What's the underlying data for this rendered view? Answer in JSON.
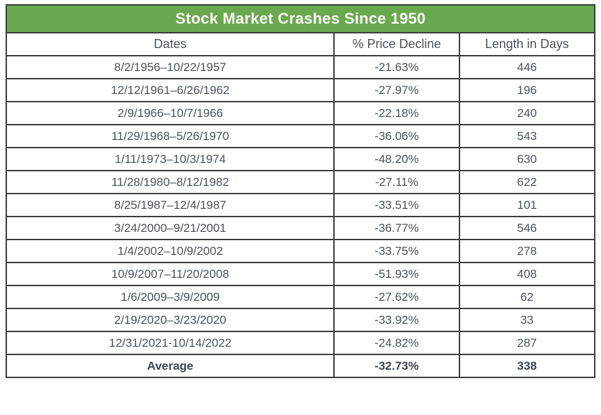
{
  "table": {
    "title": "Stock Market Crashes Since 1950",
    "headers": {
      "dates": "Dates",
      "decline": "% Price Decline",
      "days": "Length in Days"
    },
    "rows": [
      {
        "dates": "8/2/1956–10/22/1957",
        "decline": "-21.63%",
        "days": "446"
      },
      {
        "dates": "12/12/1961–6/26/1962",
        "decline": "-27.97%",
        "days": "196"
      },
      {
        "dates": "2/9/1966–10/7/1966",
        "decline": "-22.18%",
        "days": "240"
      },
      {
        "dates": "11/29/1968–5/26/1970",
        "decline": "-36.06%",
        "days": "543"
      },
      {
        "dates": "1/11/1973–10/3/1974",
        "decline": "-48.20%",
        "days": "630"
      },
      {
        "dates": "11/28/1980–8/12/1982",
        "decline": "-27.11%",
        "days": "622"
      },
      {
        "dates": "8/25/1987–12/4/1987",
        "decline": "-33.51%",
        "days": "101"
      },
      {
        "dates": "3/24/2000–9/21/2001",
        "decline": "-36.77%",
        "days": "546"
      },
      {
        "dates": "1/4/2002–10/9/2002",
        "decline": "-33.75%",
        "days": "278"
      },
      {
        "dates": "10/9/2007–11/20/2008",
        "decline": "-51.93%",
        "days": "408"
      },
      {
        "dates": "1/6/2009–3/9/2009",
        "decline": "-27.62%",
        "days": "62"
      },
      {
        "dates": "2/19/2020–3/23/2020",
        "decline": "-33.92%",
        "days": "33"
      },
      {
        "dates": "12/31/2021-10/14/2022",
        "decline": "-24.82%",
        "days": "287"
      }
    ],
    "average": {
      "label": "Average",
      "decline": "-32.73%",
      "days": "338"
    },
    "colors": {
      "title_background": "#6aa84f",
      "title_text": "#fbfbf9",
      "border": "#3d3d3d",
      "body_text": "#4a525c"
    }
  },
  "chart_data": {
    "type": "table",
    "title": "Stock Market Crashes Since 1950",
    "columns": [
      "Dates",
      "% Price Decline",
      "Length in Days"
    ],
    "rows": [
      {
        "dates": "8/2/1956–10/22/1957",
        "price_decline_pct": -21.63,
        "length_days": 446
      },
      {
        "dates": "12/12/1961–6/26/1962",
        "price_decline_pct": -27.97,
        "length_days": 196
      },
      {
        "dates": "2/9/1966–10/7/1966",
        "price_decline_pct": -22.18,
        "length_days": 240
      },
      {
        "dates": "11/29/1968–5/26/1970",
        "price_decline_pct": -36.06,
        "length_days": 543
      },
      {
        "dates": "1/11/1973–10/3/1974",
        "price_decline_pct": -48.2,
        "length_days": 630
      },
      {
        "dates": "11/28/1980–8/12/1982",
        "price_decline_pct": -27.11,
        "length_days": 622
      },
      {
        "dates": "8/25/1987–12/4/1987",
        "price_decline_pct": -33.51,
        "length_days": 101
      },
      {
        "dates": "3/24/2000–9/21/2001",
        "price_decline_pct": -36.77,
        "length_days": 546
      },
      {
        "dates": "1/4/2002–10/9/2002",
        "price_decline_pct": -33.75,
        "length_days": 278
      },
      {
        "dates": "10/9/2007–11/20/2008",
        "price_decline_pct": -51.93,
        "length_days": 408
      },
      {
        "dates": "1/6/2009–3/9/2009",
        "price_decline_pct": -27.62,
        "length_days": 62
      },
      {
        "dates": "2/19/2020–3/23/2020",
        "price_decline_pct": -33.92,
        "length_days": 33
      },
      {
        "dates": "12/31/2021-10/14/2022",
        "price_decline_pct": -24.82,
        "length_days": 287
      }
    ],
    "footer": {
      "label": "Average",
      "price_decline_pct": -32.73,
      "length_days": 338
    }
  }
}
